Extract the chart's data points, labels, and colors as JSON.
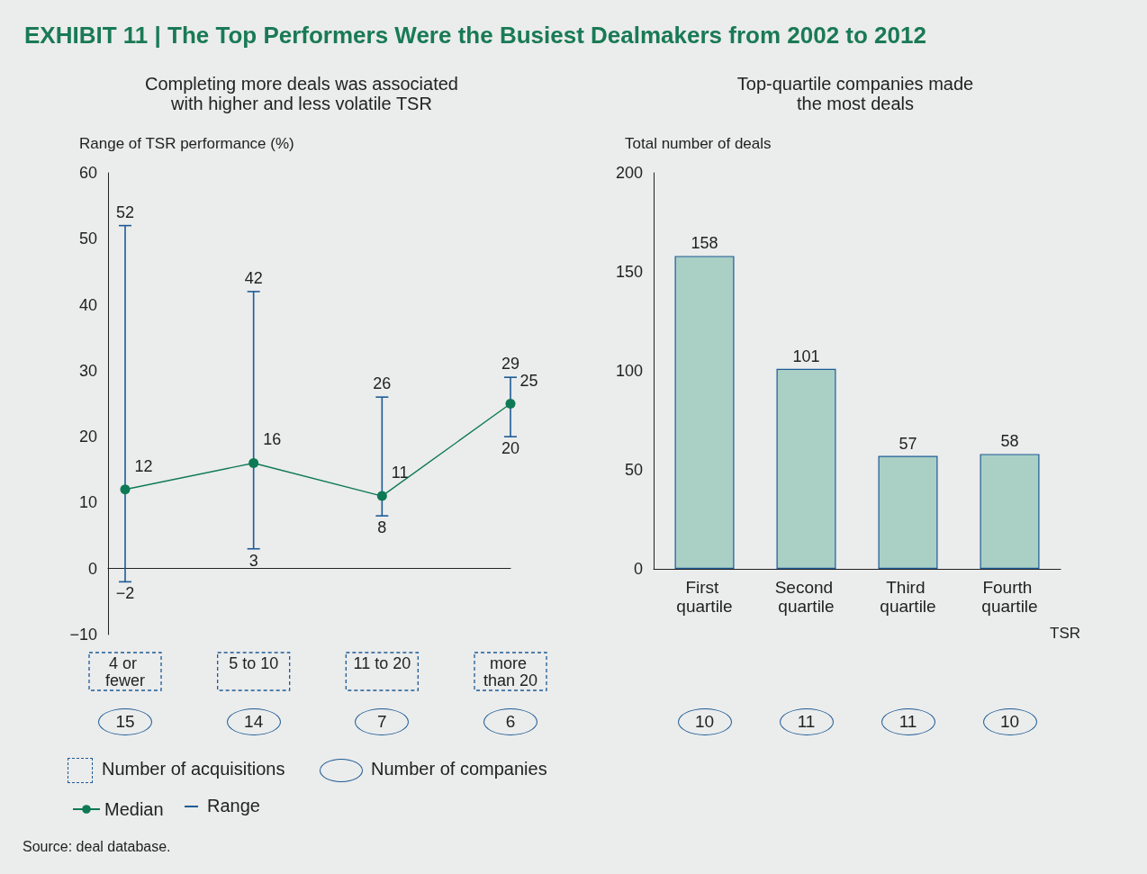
{
  "chart_data": [
    {
      "type": "line",
      "title": "EXHIBIT 11 | The Top Performers Were the Busiest Dealmakers from 2002 to 2012",
      "subtitle": "Completing more deals was associated\nwith higher and less volatile TSR",
      "ylabel": "Range of TSR performance (%)",
      "categories": [
        "4 or fewer",
        "5 to 10",
        "11 to 20",
        "more than 20"
      ],
      "series": [
        {
          "name": "Median",
          "color": "#0e7a55",
          "values": [
            12,
            16,
            11,
            25
          ],
          "errors": [
            [
              -2,
              52
            ],
            [
              3,
              42
            ],
            [
              8,
              26
            ],
            [
              20,
              29
            ]
          ]
        }
      ],
      "ylim": [
        -10,
        60
      ],
      "yticks": [
        -10,
        0,
        10,
        20,
        30,
        40,
        50,
        60
      ],
      "legend": "bottom left",
      "marker": "circle",
      "data_labels": true,
      "annotations": [
        "Number of acquisitions",
        "Number of companies",
        "Range",
        "Source: deal database.",
        "15",
        "14",
        "7",
        "6",
        {
          "text": "52",
          "x": "4 or fewer",
          "y": 52
        },
        {
          "text": "−2",
          "x": "4 or fewer",
          "y": -2
        },
        {
          "text": "42",
          "x": "5 to 10",
          "y": 42
        },
        {
          "text": "3",
          "x": "5 to 10",
          "y": 3
        },
        {
          "text": "26",
          "x": "11 to 20",
          "y": 26
        },
        {
          "text": "8",
          "x": "11 to 20",
          "y": 8
        },
        {
          "text": "29",
          "x": "more than 20",
          "y": 29
        },
        {
          "text": "20",
          "x": "more than 20",
          "y": 20
        }
      ]
    },
    {
      "type": "bar",
      "title": "Top-quartile companies made\nthe most deals",
      "ylabel": "Total number of deals",
      "xlabel": "TSR",
      "categories": [
        "First quartile",
        "Second quartile",
        "Third quartile",
        "Fourth quartile"
      ],
      "values": [
        158,
        101,
        57,
        58
      ],
      "color": "#aacfc5",
      "ylim": [
        0,
        200
      ],
      "yticks": [
        0,
        50,
        100,
        150,
        200
      ],
      "data_labels": true,
      "annotations": [
        "10",
        "11",
        "11",
        "10"
      ]
    }
  ]
}
